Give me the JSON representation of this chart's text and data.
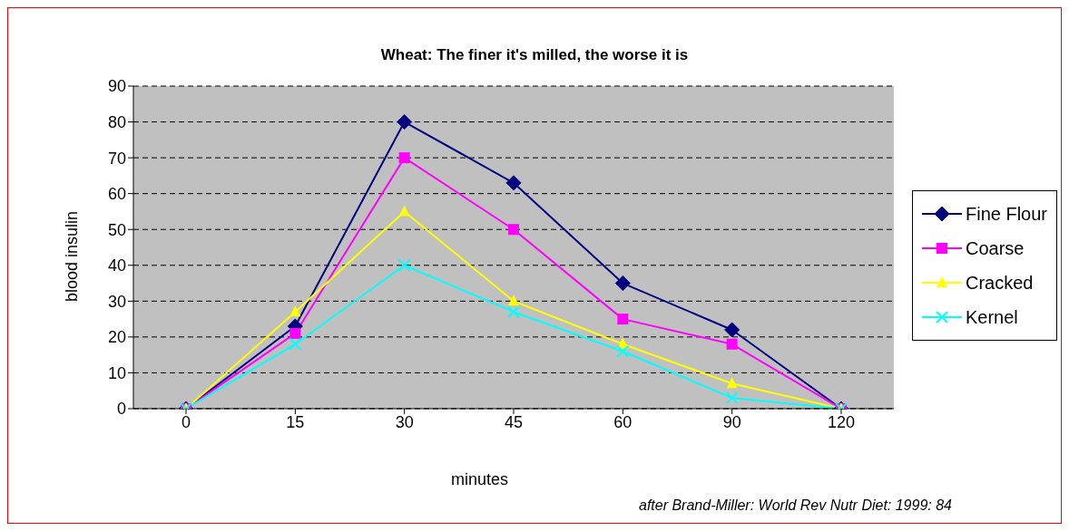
{
  "chart_data": {
    "type": "line",
    "title": "Wheat: The finer it's milled, the worse it is",
    "xlabel": "minutes",
    "ylabel": "blood insulin",
    "annotations": [
      "after Brand-Miller: World Rev Nutr Diet: 1999: 84"
    ],
    "categories": [
      "0",
      "15",
      "30",
      "45",
      "60",
      "90",
      "120"
    ],
    "series": [
      {
        "name": "Fine Flour",
        "color": "#000080",
        "marker": "diamond",
        "values": [
          0,
          23,
          80,
          63,
          35,
          22,
          0
        ]
      },
      {
        "name": "Coarse",
        "color": "#ff00ff",
        "marker": "square",
        "values": [
          0,
          21,
          70,
          50,
          25,
          18,
          0
        ]
      },
      {
        "name": "Cracked",
        "color": "#ffff00",
        "marker": "triangle",
        "values": [
          0,
          27,
          55,
          30,
          18,
          7,
          0
        ]
      },
      {
        "name": "Kernel",
        "color": "#00ffff",
        "marker": "cross",
        "values": [
          0,
          18,
          40,
          27,
          16,
          3,
          0
        ]
      }
    ],
    "ylim": [
      0,
      90
    ],
    "yticks": [
      0,
      10,
      20,
      30,
      40,
      50,
      60,
      70,
      80,
      90
    ],
    "grid": "y",
    "legend": "right",
    "line_style": "solid"
  }
}
